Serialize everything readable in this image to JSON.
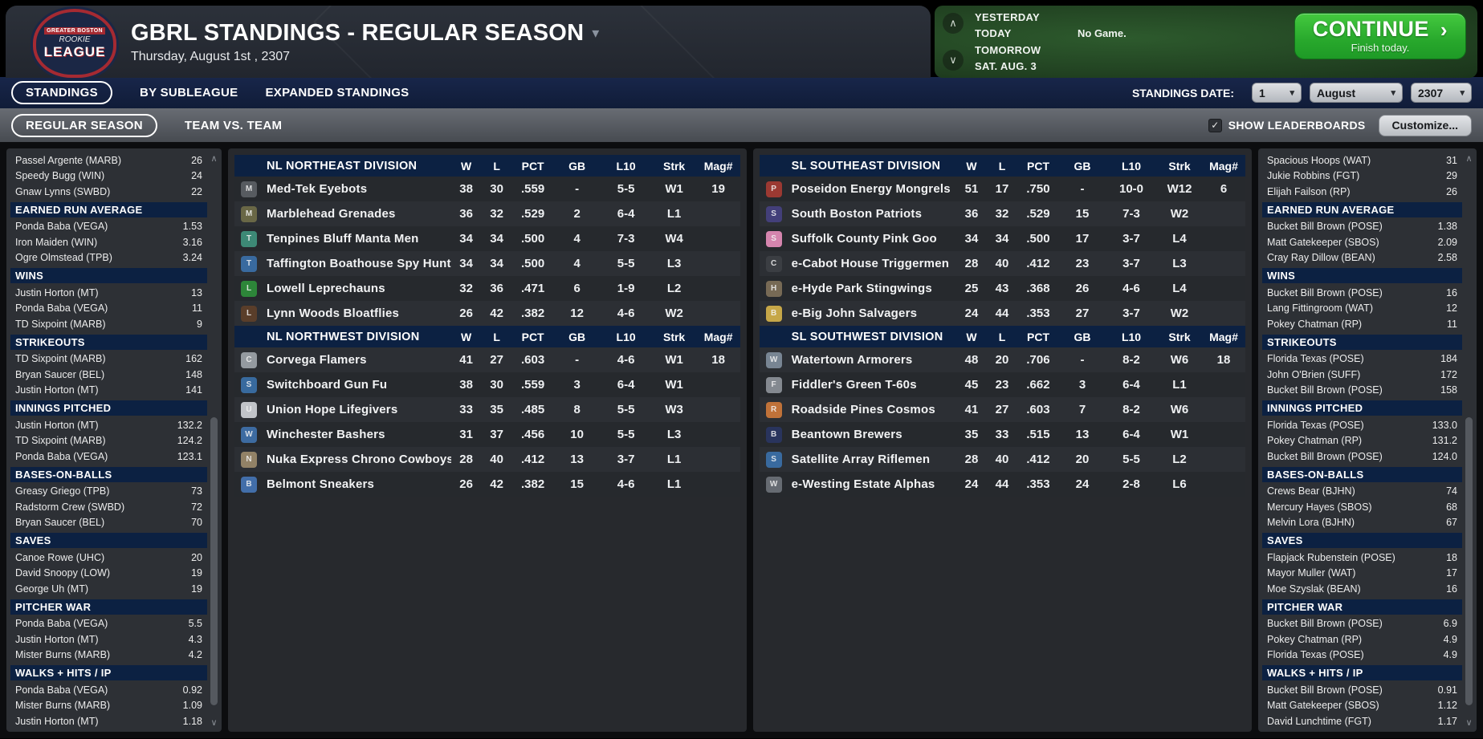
{
  "header": {
    "title": "GBRL STANDINGS - REGULAR SEASON",
    "subtitle": "Thursday, August 1st , 2307",
    "logo": {
      "line1": "GREATER BOSTON",
      "line2": "ROOKIE",
      "line3": "LEAGUE"
    }
  },
  "schedule": {
    "days": [
      "YESTERDAY",
      "TODAY",
      "TOMORROW",
      "SAT. AUG. 3"
    ],
    "today_note": "No Game.",
    "continue_label": "CONTINUE",
    "continue_arrow": "›",
    "continue_sub": "Finish today."
  },
  "tabs_primary": [
    {
      "label": "STANDINGS"
    },
    {
      "label": "BY SUBLEAGUE"
    },
    {
      "label": "EXPANDED STANDINGS"
    }
  ],
  "standings_date": {
    "label": "STANDINGS DATE:",
    "day": "1",
    "month": "August",
    "year": "2307"
  },
  "tabs_secondary": [
    {
      "label": "REGULAR SEASON"
    },
    {
      "label": "TEAM VS. TEAM"
    }
  ],
  "show_leaderboards_label": "SHOW LEADERBOARDS",
  "checkbox_glyph": "✓",
  "customize_label": "Customize...",
  "standings_columns": [
    "W",
    "L",
    "PCT",
    "GB",
    "L10",
    "Strk",
    "Mag#"
  ],
  "left_leaderboard": {
    "top_rows": [
      {
        "name": "Passel Argente (MARB)",
        "value": "26"
      },
      {
        "name": "Speedy Bugg (WIN)",
        "value": "24"
      },
      {
        "name": "Gnaw Lynns (SWBD)",
        "value": "22"
      }
    ],
    "sections": [
      {
        "title": "EARNED RUN AVERAGE",
        "rows": [
          {
            "name": "Ponda Baba (VEGA)",
            "value": "1.53"
          },
          {
            "name": "Iron Maiden (WIN)",
            "value": "3.16"
          },
          {
            "name": "Ogre Olmstead (TPB)",
            "value": "3.24"
          }
        ]
      },
      {
        "title": "WINS",
        "rows": [
          {
            "name": "Justin Horton (MT)",
            "value": "13"
          },
          {
            "name": "Ponda Baba (VEGA)",
            "value": "11"
          },
          {
            "name": "TD Sixpoint (MARB)",
            "value": "9"
          }
        ]
      },
      {
        "title": "STRIKEOUTS",
        "rows": [
          {
            "name": "TD Sixpoint (MARB)",
            "value": "162"
          },
          {
            "name": "Bryan Saucer (BEL)",
            "value": "148"
          },
          {
            "name": "Justin Horton (MT)",
            "value": "141"
          }
        ]
      },
      {
        "title": "INNINGS PITCHED",
        "rows": [
          {
            "name": "Justin Horton (MT)",
            "value": "132.2"
          },
          {
            "name": "TD Sixpoint (MARB)",
            "value": "124.2"
          },
          {
            "name": "Ponda Baba (VEGA)",
            "value": "123.1"
          }
        ]
      },
      {
        "title": "BASES-ON-BALLS",
        "rows": [
          {
            "name": "Greasy Griego (TPB)",
            "value": "73"
          },
          {
            "name": "Radstorm Crew (SWBD)",
            "value": "72"
          },
          {
            "name": "Bryan Saucer (BEL)",
            "value": "70"
          }
        ]
      },
      {
        "title": "SAVES",
        "rows": [
          {
            "name": "Canoe Rowe (UHC)",
            "value": "20"
          },
          {
            "name": "David Snoopy (LOW)",
            "value": "19"
          },
          {
            "name": "George Uh (MT)",
            "value": "19"
          }
        ]
      },
      {
        "title": "PITCHER WAR",
        "rows": [
          {
            "name": "Ponda Baba (VEGA)",
            "value": "5.5"
          },
          {
            "name": "Justin Horton (MT)",
            "value": "4.3"
          },
          {
            "name": "Mister Burns (MARB)",
            "value": "4.2"
          }
        ]
      },
      {
        "title": "WALKS + HITS / IP",
        "rows": [
          {
            "name": "Ponda Baba (VEGA)",
            "value": "0.92"
          },
          {
            "name": "Mister Burns (MARB)",
            "value": "1.09"
          },
          {
            "name": "Justin Horton (MT)",
            "value": "1.18"
          }
        ]
      }
    ]
  },
  "right_leaderboard": {
    "top_rows": [
      {
        "name": "Spacious Hoops (WAT)",
        "value": "31"
      },
      {
        "name": "Jukie Robbins (FGT)",
        "value": "29"
      },
      {
        "name": "Elijah Failson (RP)",
        "value": "26"
      }
    ],
    "sections": [
      {
        "title": "EARNED RUN AVERAGE",
        "rows": [
          {
            "name": "Bucket Bill Brown (POSE)",
            "value": "1.38"
          },
          {
            "name": "Matt Gatekeeper (SBOS)",
            "value": "2.09"
          },
          {
            "name": "Cray Ray Dillow (BEAN)",
            "value": "2.58"
          }
        ]
      },
      {
        "title": "WINS",
        "rows": [
          {
            "name": "Bucket Bill Brown (POSE)",
            "value": "16"
          },
          {
            "name": "Lang Fittingroom (WAT)",
            "value": "12"
          },
          {
            "name": "Pokey Chatman (RP)",
            "value": "11"
          }
        ]
      },
      {
        "title": "STRIKEOUTS",
        "rows": [
          {
            "name": "Florida Texas (POSE)",
            "value": "184"
          },
          {
            "name": "John O'Brien (SUFF)",
            "value": "172"
          },
          {
            "name": "Bucket Bill Brown (POSE)",
            "value": "158"
          }
        ]
      },
      {
        "title": "INNINGS PITCHED",
        "rows": [
          {
            "name": "Florida Texas (POSE)",
            "value": "133.0"
          },
          {
            "name": "Pokey Chatman (RP)",
            "value": "131.2"
          },
          {
            "name": "Bucket Bill Brown (POSE)",
            "value": "124.0"
          }
        ]
      },
      {
        "title": "BASES-ON-BALLS",
        "rows": [
          {
            "name": "Crews Bear (BJHN)",
            "value": "74"
          },
          {
            "name": "Mercury Hayes (SBOS)",
            "value": "68"
          },
          {
            "name": "Melvin Lora (BJHN)",
            "value": "67"
          }
        ]
      },
      {
        "title": "SAVES",
        "rows": [
          {
            "name": "Flapjack Rubenstein (POSE)",
            "value": "18"
          },
          {
            "name": "Mayor Muller (WAT)",
            "value": "17"
          },
          {
            "name": "Moe Szyslak (BEAN)",
            "value": "16"
          }
        ]
      },
      {
        "title": "PITCHER WAR",
        "rows": [
          {
            "name": "Bucket Bill Brown (POSE)",
            "value": "6.9"
          },
          {
            "name": "Pokey Chatman (RP)",
            "value": "4.9"
          },
          {
            "name": "Florida Texas (POSE)",
            "value": "4.9"
          }
        ]
      },
      {
        "title": "WALKS + HITS / IP",
        "rows": [
          {
            "name": "Bucket Bill Brown (POSE)",
            "value": "0.91"
          },
          {
            "name": "Matt Gatekeeper (SBOS)",
            "value": "1.12"
          },
          {
            "name": "David Lunchtime (FGT)",
            "value": "1.17"
          }
        ]
      }
    ]
  },
  "nl_divisions": [
    {
      "name": "NL NORTHEAST DIVISION",
      "teams": [
        {
          "name": "Med-Tek Eyebots",
          "icon_color": "#5a5e63",
          "w": "38",
          "l": "30",
          "pct": ".559",
          "gb": "-",
          "l10": "5-5",
          "strk": "W1",
          "mag": "19"
        },
        {
          "name": "Marblehead Grenades",
          "icon_color": "#6d6b48",
          "w": "36",
          "l": "32",
          "pct": ".529",
          "gb": "2",
          "l10": "6-4",
          "strk": "L1",
          "mag": ""
        },
        {
          "name": "Tenpines Bluff Manta Men",
          "icon_color": "#3f8f7a",
          "w": "34",
          "l": "34",
          "pct": ".500",
          "gb": "4",
          "l10": "7-3",
          "strk": "W4",
          "mag": ""
        },
        {
          "name": "Taffington Boathouse Spy Hunters",
          "icon_color": "#3a6ea5",
          "w": "34",
          "l": "34",
          "pct": ".500",
          "gb": "4",
          "l10": "5-5",
          "strk": "L3",
          "mag": ""
        },
        {
          "name": "Lowell Leprechauns",
          "icon_color": "#2e8b3a",
          "w": "32",
          "l": "36",
          "pct": ".471",
          "gb": "6",
          "l10": "1-9",
          "strk": "L2",
          "mag": ""
        },
        {
          "name": "Lynn Woods Bloatflies",
          "icon_color": "#5d3f2a",
          "w": "26",
          "l": "42",
          "pct": ".382",
          "gb": "12",
          "l10": "4-6",
          "strk": "W2",
          "mag": ""
        }
      ]
    },
    {
      "name": "NL NORTHWEST DIVISION",
      "teams": [
        {
          "name": "Corvega Flamers",
          "icon_color": "#9aa0a6",
          "w": "41",
          "l": "27",
          "pct": ".603",
          "gb": "-",
          "l10": "4-6",
          "strk": "W1",
          "mag": "18"
        },
        {
          "name": "Switchboard Gun Fu",
          "icon_color": "#3a6ea5",
          "w": "38",
          "l": "30",
          "pct": ".559",
          "gb": "3",
          "l10": "6-4",
          "strk": "W1",
          "mag": ""
        },
        {
          "name": "Union Hope Lifegivers",
          "icon_color": "#c9cdd2",
          "w": "33",
          "l": "35",
          "pct": ".485",
          "gb": "8",
          "l10": "5-5",
          "strk": "W3",
          "mag": ""
        },
        {
          "name": "Winchester Bashers",
          "icon_color": "#3f6fa8",
          "w": "31",
          "l": "37",
          "pct": ".456",
          "gb": "10",
          "l10": "5-5",
          "strk": "L3",
          "mag": ""
        },
        {
          "name": "Nuka Express Chrono Cowboys",
          "icon_color": "#98876a",
          "w": "28",
          "l": "40",
          "pct": ".412",
          "gb": "13",
          "l10": "3-7",
          "strk": "L1",
          "mag": ""
        },
        {
          "name": "Belmont Sneakers",
          "icon_color": "#4472b0",
          "w": "26",
          "l": "42",
          "pct": ".382",
          "gb": "15",
          "l10": "4-6",
          "strk": "L1",
          "mag": ""
        }
      ]
    }
  ],
  "sl_divisions": [
    {
      "name": "SL SOUTHEAST DIVISION",
      "teams": [
        {
          "name": "Poseidon Energy Mongrels",
          "icon_color": "#a23a33",
          "w": "51",
          "l": "17",
          "pct": ".750",
          "gb": "-",
          "l10": "10-0",
          "strk": "W12",
          "mag": "6"
        },
        {
          "name": "South Boston Patriots",
          "icon_color": "#45407e",
          "w": "36",
          "l": "32",
          "pct": ".529",
          "gb": "15",
          "l10": "7-3",
          "strk": "W2",
          "mag": ""
        },
        {
          "name": "Suffolk County Pink Goo",
          "icon_color": "#df8ab5",
          "w": "34",
          "l": "34",
          "pct": ".500",
          "gb": "17",
          "l10": "3-7",
          "strk": "L4",
          "mag": ""
        },
        {
          "name": "e-Cabot House Triggermen",
          "icon_color": "#3c3f44",
          "w": "28",
          "l": "40",
          "pct": ".412",
          "gb": "23",
          "l10": "3-7",
          "strk": "L3",
          "mag": ""
        },
        {
          "name": "e-Hyde Park Stingwings",
          "icon_color": "#7c6e58",
          "w": "25",
          "l": "43",
          "pct": ".368",
          "gb": "26",
          "l10": "4-6",
          "strk": "L4",
          "mag": ""
        },
        {
          "name": "e-Big John Salvagers",
          "icon_color": "#cfae4a",
          "w": "24",
          "l": "44",
          "pct": ".353",
          "gb": "27",
          "l10": "3-7",
          "strk": "W2",
          "mag": ""
        }
      ]
    },
    {
      "name": "SL SOUTHWEST DIVISION",
      "teams": [
        {
          "name": "Watertown Armorers",
          "icon_color": "#7d8a99",
          "w": "48",
          "l": "20",
          "pct": ".706",
          "gb": "-",
          "l10": "8-2",
          "strk": "W6",
          "mag": "18"
        },
        {
          "name": "Fiddler's Green T-60s",
          "icon_color": "#8a8f96",
          "w": "45",
          "l": "23",
          "pct": ".662",
          "gb": "3",
          "l10": "6-4",
          "strk": "L1",
          "mag": ""
        },
        {
          "name": "Roadside Pines Cosmos",
          "icon_color": "#c8763a",
          "w": "41",
          "l": "27",
          "pct": ".603",
          "gb": "7",
          "l10": "8-2",
          "strk": "W6",
          "mag": ""
        },
        {
          "name": "Beantown Brewers",
          "icon_color": "#2a3560",
          "w": "35",
          "l": "33",
          "pct": ".515",
          "gb": "13",
          "l10": "6-4",
          "strk": "W1",
          "mag": ""
        },
        {
          "name": "Satellite Array Riflemen",
          "icon_color": "#3a6ea5",
          "w": "28",
          "l": "40",
          "pct": ".412",
          "gb": "20",
          "l10": "5-5",
          "strk": "L2",
          "mag": ""
        },
        {
          "name": "e-Westing Estate Alphas",
          "icon_color": "#6a6f76",
          "w": "24",
          "l": "44",
          "pct": ".353",
          "gb": "24",
          "l10": "2-8",
          "strk": "L6",
          "mag": ""
        }
      ]
    }
  ],
  "scroll_glyphs": {
    "up": "∧",
    "down": "∨"
  }
}
